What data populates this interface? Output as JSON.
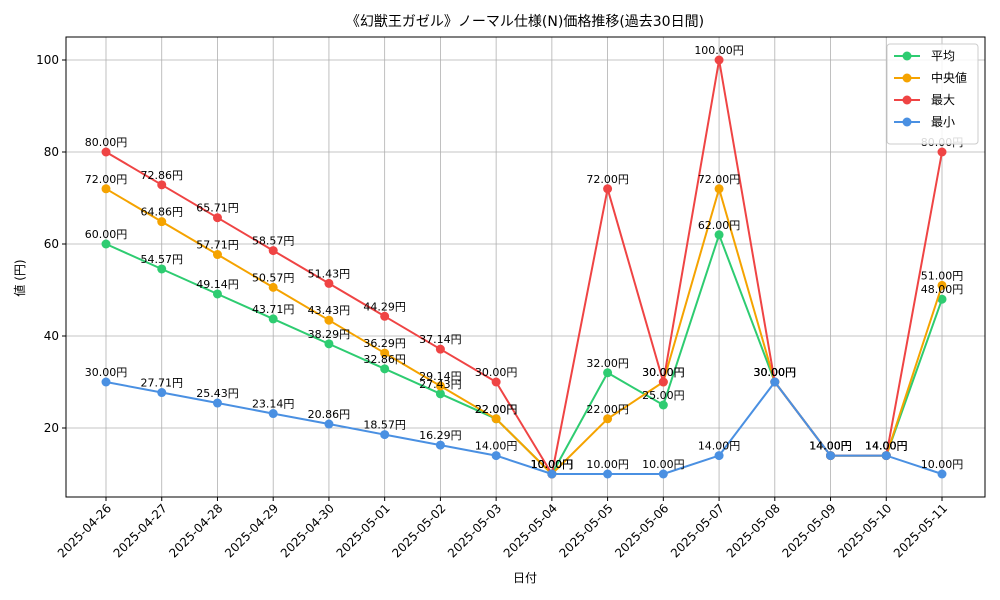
{
  "chart_data": {
    "type": "line",
    "title": "《幻獣王ガゼル》ノーマル仕様(N)価格推移(過去30日間)",
    "xlabel": "日付",
    "ylabel": "値 (円)",
    "ylim": [
      5,
      105
    ],
    "yticks": [
      20,
      40,
      60,
      80,
      100
    ],
    "grid": true,
    "legend_position": "top-right",
    "value_suffix": "円",
    "categories": [
      "2025-04-26",
      "2025-04-27",
      "2025-04-28",
      "2025-04-29",
      "2025-04-30",
      "2025-05-01",
      "2025-05-02",
      "2025-05-03",
      "2025-05-04",
      "2025-05-05",
      "2025-05-06",
      "2025-05-07",
      "2025-05-08",
      "2025-05-09",
      "2025-05-10",
      "2025-05-11"
    ],
    "series": [
      {
        "name": "平均",
        "color": "#2ecc71",
        "values": [
          60.0,
          54.57,
          49.14,
          43.71,
          38.29,
          32.86,
          27.43,
          22.0,
          10.0,
          32.0,
          25.0,
          62.0,
          30.0,
          14.0,
          14.0,
          48.0
        ]
      },
      {
        "name": "中央値",
        "color": "#f5a300",
        "values": [
          72.0,
          64.86,
          57.71,
          50.57,
          43.43,
          36.29,
          29.14,
          22.0,
          10.0,
          22.0,
          30.0,
          72.0,
          30.0,
          14.0,
          14.0,
          51.0
        ]
      },
      {
        "name": "最大",
        "color": "#ef4444",
        "values": [
          80.0,
          72.86,
          65.71,
          58.57,
          51.43,
          44.29,
          37.14,
          30.0,
          10.0,
          72.0,
          30.0,
          100.0,
          30.0,
          14.0,
          14.0,
          80.0
        ]
      },
      {
        "name": "最小",
        "color": "#4a90e2",
        "values": [
          30.0,
          27.71,
          25.43,
          23.14,
          20.86,
          18.57,
          16.29,
          14.0,
          10.0,
          10.0,
          10.0,
          14.0,
          30.0,
          14.0,
          14.0,
          10.0
        ]
      }
    ]
  }
}
